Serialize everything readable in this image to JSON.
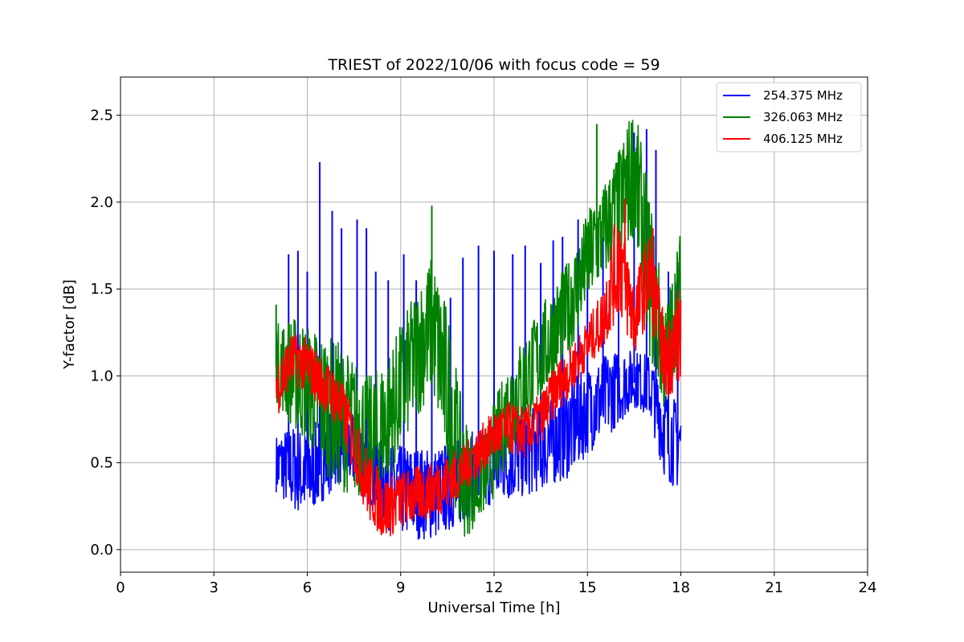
{
  "chart_data": {
    "type": "line",
    "title": "TRIEST of 2022/10/06 with focus code = 59",
    "xlabel": "Universal Time [h]",
    "ylabel": "Y-factor [dB]",
    "xlim": [
      0,
      24
    ],
    "ylim": [
      -0.13,
      2.72
    ],
    "xticks": [
      0,
      3,
      6,
      9,
      12,
      15,
      18,
      21,
      24
    ],
    "xtick_labels": [
      "0",
      "3",
      "6",
      "9",
      "12",
      "15",
      "18",
      "21",
      "24"
    ],
    "yticks": [
      0.0,
      0.5,
      1.0,
      1.5,
      2.0,
      2.5
    ],
    "ytick_labels": [
      "0.0",
      "0.5",
      "1.0",
      "1.5",
      "2.0",
      "2.5"
    ],
    "grid": true,
    "legend_position": "top-right",
    "x": [
      5.0,
      5.5,
      6.0,
      6.5,
      7.0,
      7.5,
      8.0,
      8.5,
      9.0,
      9.5,
      10.0,
      10.5,
      11.0,
      11.5,
      12.0,
      12.5,
      13.0,
      13.5,
      14.0,
      14.5,
      15.0,
      15.5,
      16.0,
      16.5,
      17.0,
      17.5,
      18.0
    ],
    "series": [
      {
        "name": "254.375 MHz",
        "color": "#0000ff",
        "values": [
          0.48,
          0.38,
          0.35,
          0.45,
          0.55,
          0.52,
          0.4,
          0.3,
          0.27,
          0.26,
          0.22,
          0.28,
          0.32,
          0.38,
          0.42,
          0.45,
          0.48,
          0.52,
          0.56,
          0.62,
          0.72,
          0.8,
          0.9,
          0.96,
          0.92,
          0.68,
          0.5
        ],
        "band_low": [
          0.33,
          0.22,
          0.19,
          0.28,
          0.38,
          0.35,
          0.25,
          0.12,
          0.08,
          0.06,
          0.05,
          0.1,
          0.14,
          0.22,
          0.26,
          0.28,
          0.3,
          0.34,
          0.38,
          0.42,
          0.55,
          0.62,
          0.72,
          0.82,
          0.76,
          0.4,
          0.33
        ],
        "band_high": [
          0.66,
          0.72,
          0.68,
          0.78,
          0.85,
          0.8,
          0.7,
          0.62,
          0.6,
          0.6,
          0.58,
          0.62,
          0.65,
          0.7,
          0.72,
          0.75,
          0.8,
          0.84,
          0.9,
          0.98,
          1.05,
          1.12,
          1.15,
          1.15,
          1.12,
          0.95,
          0.82
        ],
        "spikes": [
          [
            5.4,
            1.7
          ],
          [
            5.7,
            1.72
          ],
          [
            6.0,
            1.6
          ],
          [
            6.4,
            2.23
          ],
          [
            6.8,
            1.95
          ],
          [
            7.1,
            1.85
          ],
          [
            7.6,
            1.9
          ],
          [
            7.9,
            1.85
          ],
          [
            8.2,
            1.6
          ],
          [
            8.6,
            1.55
          ],
          [
            9.1,
            1.7
          ],
          [
            9.5,
            1.55
          ],
          [
            10.0,
            1.58
          ],
          [
            10.6,
            1.45
          ],
          [
            11.0,
            1.68
          ],
          [
            11.5,
            1.75
          ],
          [
            12.0,
            1.72
          ],
          [
            12.6,
            1.7
          ],
          [
            13.0,
            1.75
          ],
          [
            13.5,
            1.65
          ],
          [
            13.9,
            1.78
          ],
          [
            14.2,
            1.8
          ],
          [
            14.7,
            1.9
          ],
          [
            15.0,
            1.85
          ],
          [
            15.5,
            1.8
          ],
          [
            16.0,
            2.05
          ],
          [
            16.5,
            2.4
          ],
          [
            16.9,
            2.42
          ],
          [
            17.2,
            2.3
          ],
          [
            17.6,
            1.6
          ],
          [
            17.9,
            1.65
          ]
        ]
      },
      {
        "name": "326.063 MHz",
        "color": "#008000",
        "values": [
          1.05,
          1.0,
          0.95,
          0.85,
          0.75,
          0.65,
          0.6,
          0.7,
          0.9,
          1.1,
          1.3,
          0.9,
          0.4,
          0.35,
          0.55,
          0.8,
          0.95,
          1.1,
          1.25,
          1.45,
          1.65,
          1.8,
          2.0,
          2.3,
          1.6,
          1.05,
          1.6
        ],
        "band_low": [
          0.85,
          0.7,
          0.6,
          0.45,
          0.35,
          0.3,
          0.28,
          0.35,
          0.55,
          0.75,
          0.9,
          0.45,
          0.05,
          0.15,
          0.3,
          0.55,
          0.7,
          0.85,
          0.98,
          1.15,
          1.4,
          1.55,
          1.65,
          1.8,
          1.1,
          0.75,
          1.2
        ],
        "band_high": [
          1.3,
          1.35,
          1.3,
          1.25,
          1.2,
          1.1,
          1.0,
          1.1,
          1.3,
          1.5,
          1.7,
          1.4,
          0.8,
          0.6,
          0.85,
          1.1,
          1.25,
          1.4,
          1.55,
          1.7,
          1.95,
          2.1,
          2.3,
          2.58,
          2.05,
          1.4,
          1.85
        ],
        "spikes": [
          [
            5.0,
            1.41
          ],
          [
            10.0,
            1.98
          ],
          [
            14.3,
            1.52
          ],
          [
            15.3,
            2.45
          ],
          [
            15.7,
            2.1
          ],
          [
            16.0,
            2.25
          ]
        ]
      },
      {
        "name": "406.125 MHz",
        "color": "#ff0000",
        "values": [
          0.9,
          1.1,
          1.05,
          0.95,
          0.85,
          0.6,
          0.35,
          0.25,
          0.3,
          0.32,
          0.35,
          0.38,
          0.45,
          0.55,
          0.65,
          0.7,
          0.68,
          0.75,
          0.95,
          1.05,
          1.2,
          1.35,
          1.7,
          1.3,
          1.6,
          1.1,
          1.3
        ],
        "band_low": [
          0.75,
          0.95,
          0.9,
          0.8,
          0.7,
          0.42,
          0.15,
          0.05,
          0.12,
          0.15,
          0.18,
          0.22,
          0.32,
          0.42,
          0.52,
          0.55,
          0.52,
          0.6,
          0.78,
          0.9,
          1.05,
          1.15,
          1.35,
          1.1,
          1.35,
          0.85,
          0.95
        ],
        "band_high": [
          1.1,
          1.25,
          1.22,
          1.1,
          1.02,
          0.8,
          0.55,
          0.42,
          0.45,
          0.48,
          0.5,
          0.55,
          0.6,
          0.7,
          0.8,
          0.85,
          0.82,
          0.9,
          1.08,
          1.18,
          1.32,
          1.5,
          2.02,
          1.55,
          1.85,
          1.3,
          1.55
        ],
        "spikes": [
          [
            16.2,
            2.02
          ],
          [
            17.1,
            1.85
          ]
        ]
      }
    ]
  }
}
